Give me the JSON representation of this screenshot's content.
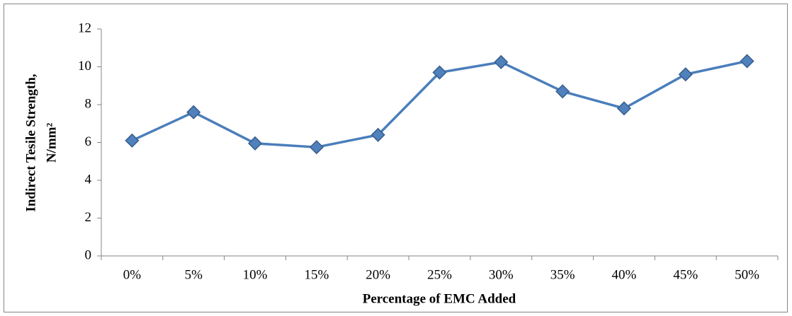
{
  "chart_data": {
    "type": "line",
    "x_label": "Percentage of EMC Added",
    "y_label": [
      "Indirect Tesile Strength,",
      "N/mm²"
    ],
    "categories": [
      "0%",
      "5%",
      "10%",
      "15%",
      "20%",
      "25%",
      "30%",
      "35%",
      "40%",
      "45%",
      "50%"
    ],
    "values": [
      6.1,
      7.6,
      5.95,
      5.75,
      6.4,
      9.7,
      10.25,
      8.7,
      7.8,
      9.6,
      10.3
    ],
    "color": "#4a7ebb",
    "marker_color": "#4f81bd",
    "ylim": [
      0,
      12
    ],
    "yticks": [
      0,
      2,
      4,
      6,
      8,
      10,
      12
    ],
    "grid": false
  }
}
